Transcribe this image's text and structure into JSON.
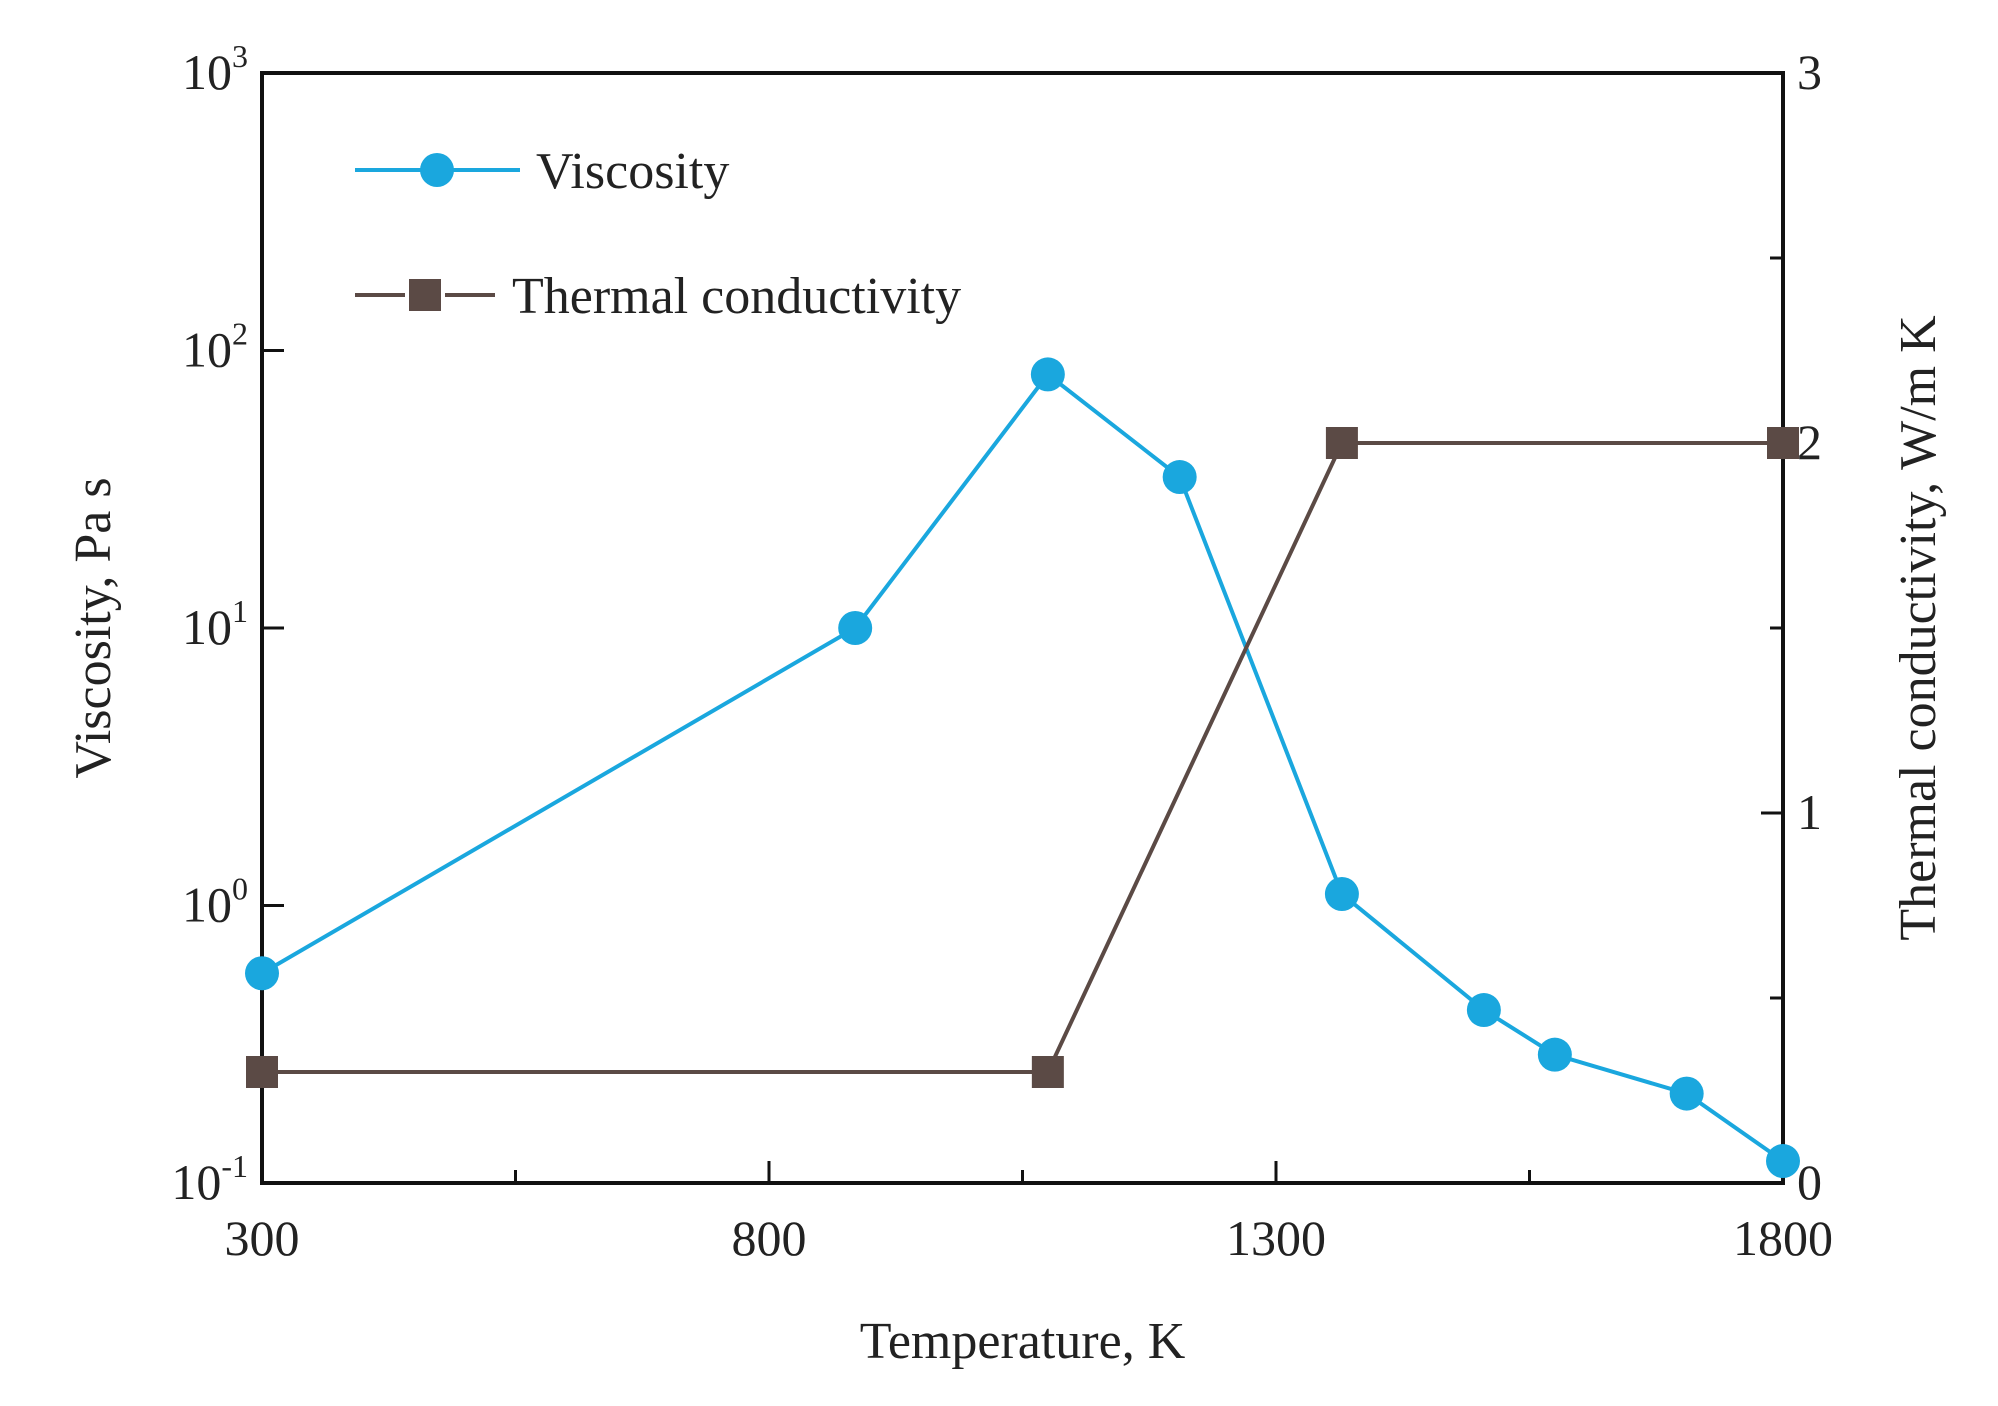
{
  "chart_data": {
    "type": "line",
    "xlabel": "Temperature, K",
    "ylabel_left": "Viscosity, Pa s",
    "ylabel_right": "Thermal conductivity, W/m K",
    "xlim": [
      300,
      1800
    ],
    "x_ticks": [
      300,
      800,
      1300,
      1800
    ],
    "x_tick_labels": [
      "300",
      "800",
      "1300",
      "1800"
    ],
    "ylim_left": [
      0.1,
      1000
    ],
    "y_left_scale": "log",
    "y_left_ticks": [
      {
        "base": "10",
        "exp": "-1"
      },
      {
        "base": "10",
        "exp": "0"
      },
      {
        "base": "10",
        "exp": "1"
      },
      {
        "base": "10",
        "exp": "2"
      },
      {
        "base": "10",
        "exp": "3"
      }
    ],
    "ylim_right": [
      0,
      3
    ],
    "y_right_ticks": [
      "0",
      "1",
      "2",
      "3"
    ],
    "grid": false,
    "legend_position": "top-left",
    "series": [
      {
        "name": "Viscosity",
        "axis": "left",
        "marker": "circle",
        "color": "#1aa7de",
        "x": [
          300,
          885,
          1075,
          1205,
          1365,
          1505,
          1575,
          1705,
          1800
        ],
        "y": [
          0.57,
          10,
          82,
          35,
          1.1,
          0.42,
          0.29,
          0.21,
          0.12
        ]
      },
      {
        "name": "Thermal conductivity",
        "axis": "right",
        "marker": "square",
        "color": "#5b4a45",
        "x": [
          300,
          1075,
          1365,
          1800
        ],
        "y": [
          0.3,
          0.3,
          2.0,
          2.0
        ]
      }
    ]
  }
}
